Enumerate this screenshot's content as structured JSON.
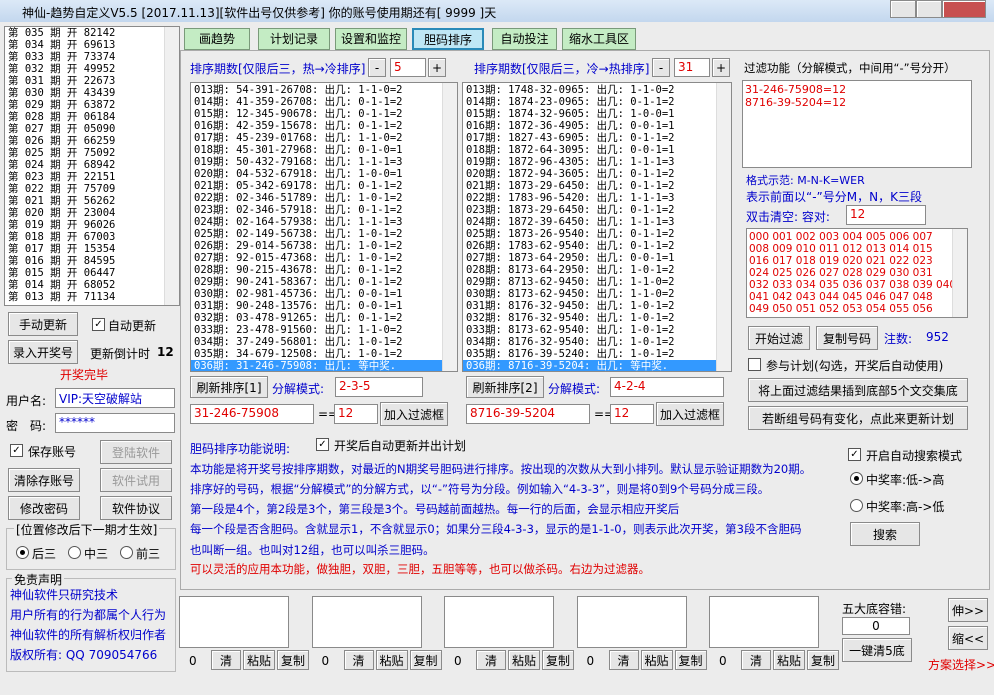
{
  "title_bar": {
    "title": "神仙-趋势自定义V5.5 [2017.11.13][软件出号仅供参考] 你的账号使用期还有[ 9999 ]天"
  },
  "history": [
    "第 035 期 开 82142",
    "第 034 期 开 69613",
    "第 033 期 开 73374",
    "第 032 期 开 49952",
    "第 031 期 开 22673",
    "第 030 期 开 43439",
    "第 029 期 开 63872",
    "第 028 期 开 06184",
    "第 027 期 开 05090",
    "第 026 期 开 66259",
    "第 025 期 开 75092",
    "第 024 期 开 68942",
    "第 023 期 开 22151",
    "第 022 期 开 75709",
    "第 021 期 开 56262",
    "第 020 期 开 23004",
    "第 019 期 开 96026",
    "第 018 期 开 67003",
    "第 017 期 开 15354",
    "第 016 期 开 84595",
    "第 015 期 开 06447",
    "第 014 期 开 68052",
    "第 013 期 开 71134"
  ],
  "left": {
    "manual_update": "手动更新",
    "auto_update": "自动更新",
    "enter_draw": "录入开奖号",
    "countdown_label": "更新倒计时",
    "countdown": 12,
    "status": "开奖完毕",
    "username_label": "用户名:",
    "username": "VIP:天空破解站",
    "password_label": "密　码:",
    "password": "******",
    "save_account": "保存账号",
    "login": "登陆软件",
    "clear_account": "清除存账号",
    "trial": "软件试用",
    "change_password": "修改密码",
    "agreement": "软件协议",
    "position_group": "[位置修改后下一期才生效]",
    "positions": [
      "后三",
      "中三",
      "前三"
    ],
    "disclaimer_title": "免责声明",
    "disclaimer": [
      "神仙软件只研究技术",
      "用户所有的行为都属个人行为",
      "神仙软件的所有解析权归作者",
      "版权所有: QQ 709054766"
    ]
  },
  "tabs": [
    "画趋势",
    "计划记录",
    "设置和监控",
    "胆码排序",
    "自动投注",
    "缩水工具区"
  ],
  "sort_hot": {
    "label": "排序期数[仅限后三，热→冷排序]",
    "minus": "-",
    "periods": 5,
    "plus": "+",
    "rows": [
      "013期: 54-391-26708: 出几: 1-1-0=2",
      "014期: 41-359-26708: 出几: 0-1-1=2",
      "015期: 12-345-90678: 出几: 0-1-1=2",
      "016期: 42-359-15678: 出几: 0-1-1=2",
      "017期: 45-239-01768: 出几: 1-1-0=2",
      "018期: 45-301-27968: 出几: 0-1-0=1",
      "019期: 50-432-79168: 出几: 1-1-1=3",
      "020期: 04-532-67918: 出几: 1-0-0=1",
      "021期: 05-342-69178: 出几: 0-1-1=2",
      "022期: 02-346-51789: 出几: 1-0-1=2",
      "023期: 02-346-57918: 出几: 0-1-1=2",
      "024期: 02-164-57938: 出几: 1-1-1=3",
      "025期: 02-149-56738: 出几: 1-0-1=2",
      "026期: 29-014-56738: 出几: 1-0-1=2",
      "027期: 92-015-47368: 出几: 1-0-1=2",
      "028期: 90-215-43678: 出几: 0-1-1=2",
      "029期: 90-241-58367: 出几: 0-1-1=2",
      "030期: 02-981-45736: 出几: 0-0-1=1",
      "031期: 90-248-13576: 出几: 0-0-1=1",
      "032期: 03-478-91265: 出几: 0-1-1=2",
      "033期: 23-478-91560: 出几: 1-1-0=2",
      "034期: 37-249-56801: 出几: 1-0-1=2",
      "035期: 34-679-12508: 出几: 1-0-1=2",
      "036期: 31-246-75908: 出几: 等中奖."
    ],
    "refresh": "刷新排序[1]",
    "mode_label": "分解模式:",
    "mode": "2-3-5",
    "result": "31-246-75908",
    "equals": "==",
    "tolerance": 12,
    "add": "加入过滤框"
  },
  "sort_cold": {
    "label": "排序期数[仅限后三，冷→热排序]",
    "minus": "-",
    "periods": 31,
    "plus": "+",
    "rows": [
      "013期: 1748-32-0965: 出几: 1-1-0=2",
      "014期: 1874-23-0965: 出几: 0-1-1=2",
      "015期: 1874-32-9605: 出几: 1-0-0=1",
      "016期: 1872-36-4905: 出几: 0-0-1=1",
      "017期: 1827-43-6905: 出几: 0-1-1=2",
      "018期: 1872-64-3095: 出几: 0-0-1=1",
      "019期: 1872-96-4305: 出几: 1-1-1=3",
      "020期: 1872-94-3605: 出几: 0-1-1=2",
      "021期: 1873-29-6450: 出几: 0-1-1=2",
      "022期: 1783-96-5420: 出几: 1-1-1=3",
      "023期: 1873-29-6450: 出几: 0-1-1=2",
      "024期: 1872-39-6450: 出几: 1-1-1=3",
      "025期: 1873-26-9540: 出几: 0-1-1=2",
      "026期: 1783-62-9540: 出几: 0-1-1=2",
      "027期: 1873-64-2950: 出几: 0-0-1=1",
      "028期: 8173-64-2950: 出几: 1-0-1=2",
      "029期: 8713-62-9450: 出几: 1-1-0=2",
      "030期: 8173-62-9450: 出几: 1-1-0=2",
      "031期: 8176-32-9450: 出几: 1-0-1=2",
      "032期: 8176-32-9540: 出几: 1-0-1=2",
      "033期: 8173-62-9540: 出几: 1-0-1=2",
      "034期: 8176-32-9540: 出几: 1-0-1=2",
      "035期: 8176-39-5240: 出几: 1-0-1=2",
      "036期: 8716-39-5204: 出几: 等中奖."
    ],
    "refresh": "刷新排序[2]",
    "mode_label": "分解模式:",
    "mode": "4-2-4",
    "result": "8716-39-5204",
    "equals": "==",
    "tolerance": 12,
    "add": "加入过滤框"
  },
  "filter": {
    "title": "过滤功能（分解模式，中间用“-”号分开）",
    "entries": [
      "31-246-75908=12",
      "8716-39-5204=12"
    ],
    "format_example": "格式示范: M-N-K=WER",
    "format_note": "表示前面以“-”号分M，N，K三段",
    "clear_label": "双击清空: 容对:",
    "tolerance": 12,
    "numbers": [
      "000 001 002 003 004 005 006 007",
      "008 009 010 011 012 013 014 015",
      "016 017 018 019 020 021 022 023",
      "024 025 026 027 028 029 030 031",
      "032 033 034 035 036 037 038 039 040",
      "041 042 043 044 045 046 047 048",
      "049 050 051 052 053 054 055 056"
    ],
    "start": "开始过滤",
    "copy": "复制号码",
    "count_label": "注数:",
    "count": 952,
    "join_plan": "参与计划(勾选，开奖后自动使用)",
    "insert": "将上面过滤结果插到底部5个文交集底",
    "update_plan": "若断组号码有变化，点此来更新计划"
  },
  "description": {
    "title": "胆码排序功能说明:",
    "auto_plan": "开奖后自动更新并出计划",
    "lines": [
      "本功能是将开奖号按排序期数，对最近的N期奖号胆码进行排序。按出现的次数从大到小排列。默认显示验证期数为20期。",
      "排序好的号码，根据“分解模式”的分解方式，以“-”符号为分段。例如输入“4-3-3”，则是将0到9个号码分成三段。",
      "第一段是4个，第2段是3个，第三段是3个。号码越前面越热。每一行的后面，会显示相应开奖后",
      "每一个段是否含胆码。含就显示1，不含就显示0；如果分三段4-3-3，显示的是1-1-0，则表示此次开奖，第3段不含胆码",
      "也叫断一组。也叫对12组，也可以叫杀三胆码。"
    ],
    "note": "可以灵活的应用本功能，做独胆，双胆，三胆，五胆等等，也可以做杀码。右边为过滤器。"
  },
  "search": {
    "auto_search": "开启自动搜索模式",
    "options": [
      "中奖率:低->高",
      "中奖率:高->低"
    ],
    "button": "搜索"
  },
  "bottom": {
    "counts": [
      0,
      0,
      0,
      0,
      0
    ],
    "clear": "清",
    "paste": "粘贴",
    "copy": "复制",
    "tolerance_label": "五大底容错:",
    "tolerance": 0,
    "clear_all": "一键清5底",
    "expand": "伸>>",
    "shrink": "缩<<",
    "scheme": "方案选择>>"
  }
}
